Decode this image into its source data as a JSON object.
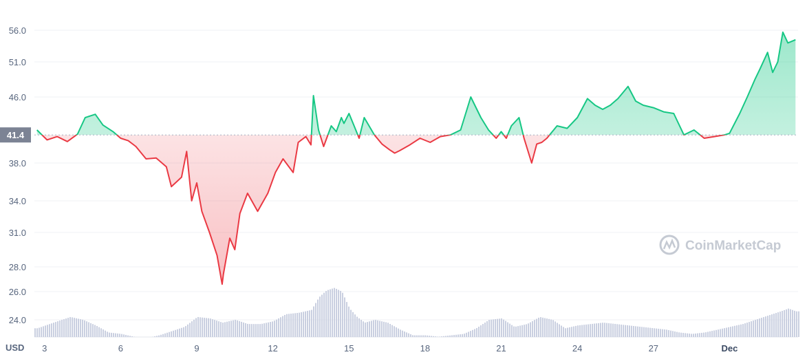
{
  "chart_data": {
    "type": "line",
    "currency_label": "USD",
    "watermark": "CoinMarketCap",
    "current_price_label": "41.4",
    "baseline_value": 41.4,
    "y_ticks": [
      24.0,
      26.0,
      28.0,
      31.0,
      34.0,
      38.0,
      46.0,
      51.0,
      56.0
    ],
    "y_tick_labels": [
      "24.0",
      "26.0",
      "28.0",
      "31.0",
      "34.0",
      "38.0",
      "46.0",
      "51.0",
      "56.0"
    ],
    "x_tick_labels": [
      "3",
      "6",
      "9",
      "12",
      "15",
      "18",
      "21",
      "24",
      "27",
      "Dec"
    ],
    "x_tick_days": [
      3,
      6,
      9,
      12,
      15,
      18,
      21,
      24,
      27,
      30
    ],
    "x_range_days": [
      2.6,
      32.7
    ],
    "colors": {
      "up": "#16c784",
      "down": "#ea3943",
      "volume": "#c9cfe0",
      "grid": "#eff2f5",
      "badge": "#7c8394"
    },
    "price_series": {
      "x": [
        2.7,
        3.1,
        3.5,
        3.9,
        4.3,
        4.6,
        5.0,
        5.3,
        5.7,
        6.0,
        6.3,
        6.6,
        7.0,
        7.4,
        7.8,
        8.0,
        8.4,
        8.6,
        8.8,
        9.0,
        9.2,
        9.5,
        9.8,
        10.0,
        10.05,
        10.3,
        10.5,
        10.7,
        11.0,
        11.4,
        11.8,
        12.1,
        12.4,
        12.8,
        13.0,
        13.3,
        13.5,
        13.6,
        13.8,
        14.0,
        14.3,
        14.5,
        14.7,
        14.8,
        15.0,
        15.2,
        15.4,
        15.6,
        16.0,
        16.3,
        16.6,
        16.8,
        17.0,
        17.4,
        17.8,
        18.2,
        18.6,
        19.0,
        19.4,
        19.8,
        20.2,
        20.5,
        20.8,
        21.0,
        21.2,
        21.4,
        21.7,
        21.9,
        22.2,
        22.4,
        22.6,
        22.8,
        23.2,
        23.6,
        24.0,
        24.4,
        24.7,
        25.0,
        25.3,
        25.6,
        26.0,
        26.3,
        26.6,
        27.0,
        27.4,
        27.8,
        28.2,
        28.6,
        29.0,
        29.4,
        29.8,
        30.0,
        30.4,
        30.7,
        31.0,
        31.2,
        31.5,
        31.7,
        31.9,
        32.1,
        32.3,
        32.6
      ],
      "y": [
        42.0,
        40.8,
        41.2,
        40.6,
        41.5,
        43.5,
        43.9,
        42.6,
        41.8,
        41.0,
        40.7,
        40.0,
        38.5,
        38.6,
        37.6,
        35.5,
        36.5,
        39.4,
        34.0,
        35.9,
        33.0,
        31.0,
        29.0,
        26.6,
        27.4,
        30.5,
        29.5,
        32.8,
        34.8,
        33.0,
        34.8,
        37.0,
        38.5,
        37.0,
        40.5,
        41.2,
        40.2,
        46.2,
        42.0,
        40.0,
        42.5,
        41.8,
        43.5,
        42.8,
        44.0,
        42.5,
        41.0,
        43.5,
        41.4,
        40.3,
        39.6,
        39.2,
        39.5,
        40.2,
        41.0,
        40.5,
        41.2,
        41.4,
        42.0,
        46.0,
        43.5,
        42.0,
        41.0,
        41.8,
        41.0,
        42.5,
        43.5,
        41.0,
        38.0,
        40.3,
        40.5,
        41.0,
        42.5,
        42.2,
        43.5,
        45.8,
        45.0,
        44.5,
        45.0,
        45.8,
        47.5,
        45.5,
        45.0,
        44.7,
        44.2,
        44.0,
        41.4,
        42.0,
        41.0,
        41.2,
        41.4,
        41.6,
        44.0,
        46.0,
        48.5,
        50.0,
        52.5,
        49.5,
        51.0,
        55.7,
        54.0,
        54.5
      ]
    },
    "volume_series": {
      "x": [
        2.7,
        3.5,
        4.0,
        4.5,
        5.0,
        5.5,
        6.0,
        6.5,
        7.0,
        7.5,
        8.0,
        8.5,
        9.0,
        9.5,
        10.0,
        10.5,
        11.0,
        11.5,
        12.0,
        12.5,
        13.0,
        13.5,
        13.8,
        14.1,
        14.4,
        14.7,
        15.0,
        15.3,
        15.6,
        16.0,
        16.5,
        17.0,
        17.5,
        18.0,
        18.5,
        19.0,
        19.5,
        20.0,
        20.5,
        21.0,
        21.5,
        22.0,
        22.5,
        23.0,
        23.5,
        24.0,
        24.5,
        25.0,
        25.5,
        26.0,
        26.5,
        27.0,
        27.5,
        28.0,
        28.5,
        29.0,
        29.5,
        30.0,
        30.5,
        31.0,
        31.5,
        32.0,
        32.3,
        32.6
      ],
      "y": [
        23.4,
        23.9,
        24.2,
        24.0,
        23.6,
        23.1,
        23.0,
        22.8,
        22.7,
        22.9,
        23.2,
        23.5,
        24.2,
        24.1,
        23.8,
        24.0,
        23.7,
        23.7,
        23.9,
        24.4,
        24.5,
        24.7,
        25.6,
        26.1,
        26.3,
        26.0,
        24.8,
        24.2,
        23.8,
        24.0,
        23.8,
        23.3,
        22.9,
        22.9,
        22.8,
        22.9,
        23.0,
        23.4,
        24.0,
        24.1,
        23.5,
        23.7,
        24.2,
        24.0,
        23.4,
        23.6,
        23.7,
        23.8,
        23.7,
        23.6,
        23.5,
        23.4,
        23.3,
        23.1,
        23.0,
        23.1,
        23.3,
        23.5,
        23.7,
        24.0,
        24.3,
        24.6,
        24.8,
        24.6
      ]
    }
  }
}
